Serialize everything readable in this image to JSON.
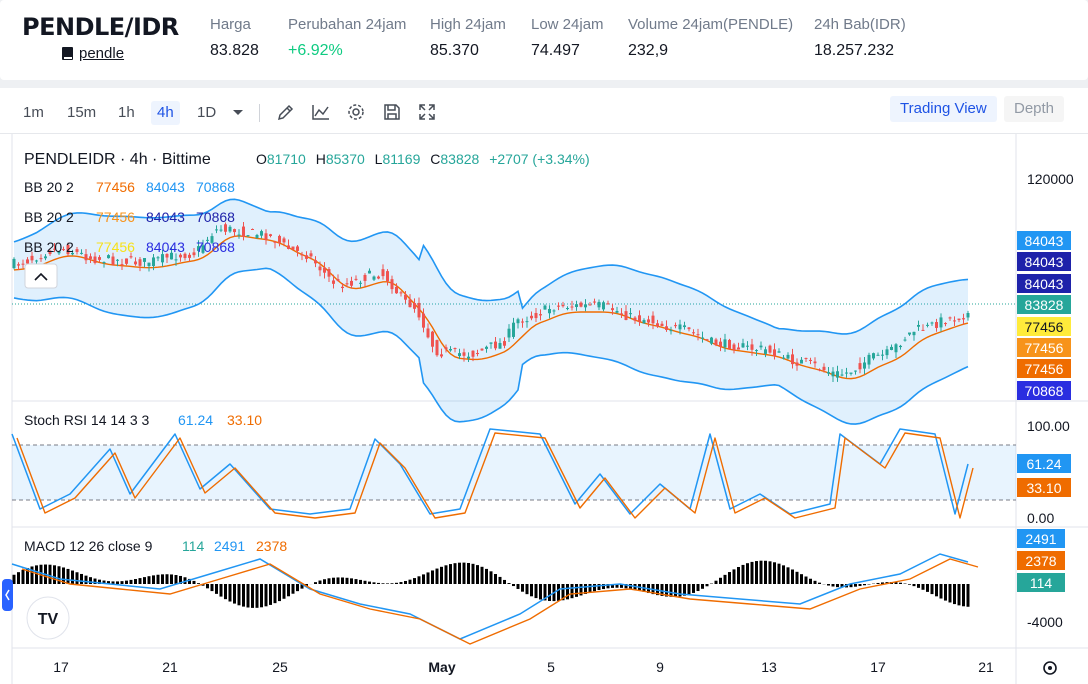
{
  "header": {
    "pair": "PENDLE/IDR",
    "pair_link": "pendle",
    "stats": [
      {
        "label": "Harga",
        "value": "83.828",
        "up": false
      },
      {
        "label": "Perubahan 24jam",
        "value": "+6.92%",
        "up": true
      },
      {
        "label": "High 24jam",
        "value": "85.370",
        "up": false
      },
      {
        "label": "Low 24jam",
        "value": "74.497",
        "up": false
      },
      {
        "label": "Volume 24jam(PENDLE)",
        "value": "232,9",
        "up": false
      },
      {
        "label": "24h Bab(IDR)",
        "value": "18.257.232",
        "up": false
      }
    ]
  },
  "toolbar": {
    "timeframes": [
      "1m",
      "15m",
      "1h",
      "4h",
      "1D"
    ],
    "active_timeframe": "4h",
    "views": [
      "Trading View",
      "Depth"
    ],
    "active_view": "Trading View",
    "icons": [
      "chevron-down-icon",
      "pencil-icon",
      "line-chart-icon",
      "gear-icon",
      "save-icon",
      "fullscreen-icon"
    ]
  },
  "legend": {
    "symbol": "PENDLEIDR · 4h · Bittime",
    "open_label": "O",
    "open": "81710",
    "high_label": "H",
    "high": "85370",
    "low_label": "L",
    "low": "81169",
    "close_label": "C",
    "close": "83828",
    "change": "+2707 (+3.34%)",
    "bb_rows": [
      {
        "name": "BB 20 2",
        "mid": "77456",
        "upper": "84043",
        "lower": "70868"
      },
      {
        "name": "BB 20 2",
        "mid": "77456",
        "upper": "84043",
        "lower": "70868"
      },
      {
        "name": "BB 20 2",
        "mid": "77456",
        "upper": "84043",
        "lower": "70868"
      }
    ],
    "rsi": {
      "name": "Stoch RSI 14 14 3 3",
      "k": "61.24",
      "d": "33.10"
    },
    "macd": {
      "name": "MACD 12 26 close 9",
      "hist": "114",
      "macd": "2491",
      "signal": "2378"
    }
  },
  "price_axis": {
    "tick": "120000",
    "tags": [
      {
        "text": "84043",
        "color": "#2196f3"
      },
      {
        "text": "84043",
        "color": "#1e22aa"
      },
      {
        "text": "84043",
        "color": "#1e22aa"
      },
      {
        "text": "83828",
        "color": "#26a69a"
      },
      {
        "text": "77456",
        "color": "#ffeb3b"
      },
      {
        "text": "77456",
        "color": "#f7931a"
      },
      {
        "text": "77456",
        "color": "#ef6c00"
      },
      {
        "text": "70868",
        "color": "#2a2ee0"
      }
    ]
  },
  "rsi_axis": {
    "ticks": [
      "100.00",
      "0.00"
    ],
    "tags": [
      {
        "text": "61.24",
        "color": "#2196f3"
      },
      {
        "text": "33.10",
        "color": "#ef6c00"
      }
    ]
  },
  "macd_axis": {
    "ticks": [
      "-4000"
    ],
    "tags": [
      {
        "text": "2491",
        "color": "#2196f3"
      },
      {
        "text": "2378",
        "color": "#ef6c00"
      },
      {
        "text": "114",
        "color": "#26a69a"
      }
    ]
  },
  "time_axis": [
    "17",
    "21",
    "25",
    "May",
    "5",
    "9",
    "13",
    "17",
    "21"
  ],
  "colors": {
    "up": "#26a69a",
    "down": "#ef5350",
    "bb": "#2196f3",
    "mid": "#ef6c00",
    "accent": "#1e53e5"
  }
}
